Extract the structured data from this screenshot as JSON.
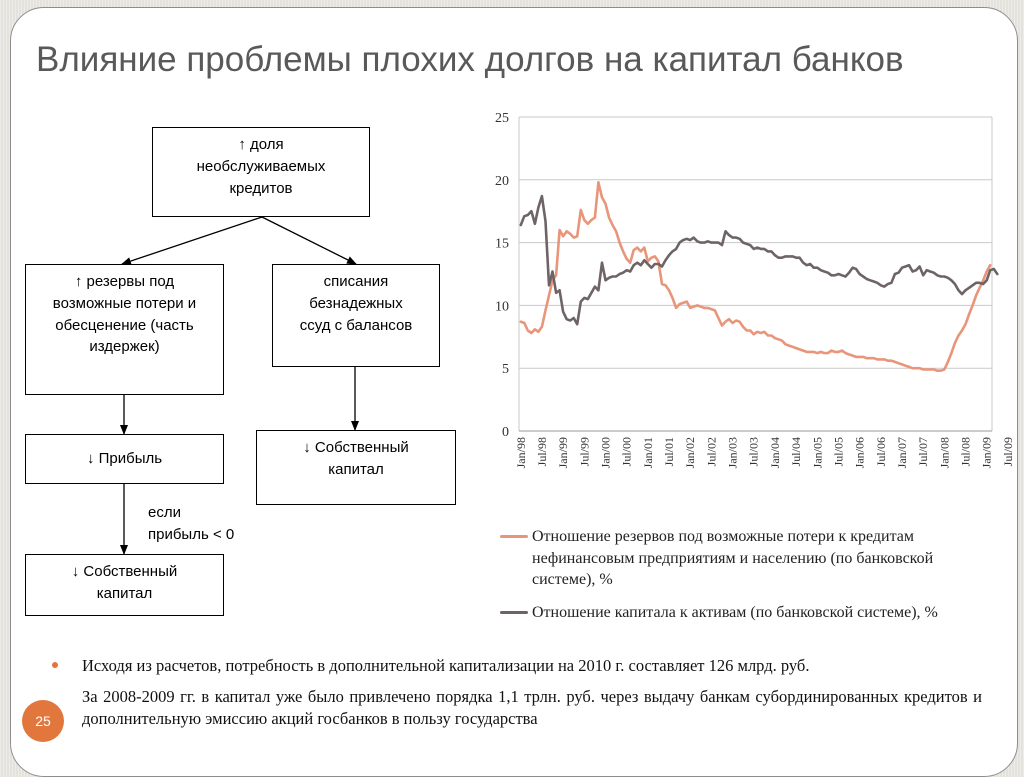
{
  "title": "Влияние проблемы плохих долгов на капитал банков",
  "flow": {
    "top": [
      "↑ доля",
      "необслуживаемых",
      "кредитов"
    ],
    "left_mid": [
      "↑ резервы под",
      "возможные потери и",
      "обесценение (часть",
      "издержек)"
    ],
    "right_mid": [
      "списания",
      "безнадежных",
      "ссуд с балансов"
    ],
    "left_low": "↓ Прибыль",
    "right_low": [
      "↓ Собственный",
      "капитал"
    ],
    "condition": [
      "если",
      "прибыль < 0"
    ],
    "bottom": [
      "↓ Собственный",
      "капитал"
    ]
  },
  "chart_data": {
    "type": "line",
    "yticks": [
      "0",
      "5",
      "10",
      "15",
      "20",
      "25"
    ],
    "ylim": [
      0,
      25
    ],
    "x_start": "Jan/98",
    "x_end": "Dec/09",
    "xticks": [
      "Jan/98",
      "Jul/98",
      "Jan/99",
      "Jul/99",
      "Jan/00",
      "Jul/00",
      "Jan/01",
      "Jul/01",
      "Jan/02",
      "Jul/02",
      "Jan/03",
      "Jul/03",
      "Jan/04",
      "Jul/04",
      "Jan/05",
      "Jul/05",
      "Jan/06",
      "Jul/06",
      "Jan/07",
      "Jul/07",
      "Jan/08",
      "Jul/08",
      "Jan/09",
      "Jul/09"
    ],
    "grid": true,
    "series": [
      {
        "name": "Отношение резервов под возможные потери к кредитам нефинансовым предприятиям и населению (по банковской системе), %",
        "color": "#e8957a",
        "values": [
          8.7,
          8.6,
          8.0,
          7.8,
          8.1,
          7.9,
          8.3,
          9.6,
          10.8,
          12.0,
          12.4,
          16.0,
          15.5,
          15.9,
          15.7,
          15.4,
          15.5,
          17.6,
          16.8,
          16.5,
          16.8,
          17.0,
          19.8,
          18.6,
          18.1,
          17.0,
          16.4,
          15.9,
          15.0,
          14.3,
          13.7,
          13.4,
          14.4,
          14.6,
          14.3,
          14.6,
          13.5,
          13.8,
          13.9,
          13.5,
          11.7,
          11.6,
          11.2,
          10.6,
          9.8,
          10.1,
          10.2,
          10.3,
          9.8,
          9.9,
          10.0,
          9.9,
          9.8,
          9.8,
          9.7,
          9.6,
          9.0,
          8.4,
          8.7,
          8.9,
          8.6,
          8.8,
          8.7,
          8.3,
          8.0,
          8.0,
          7.7,
          7.9,
          7.8,
          7.9,
          7.6,
          7.6,
          7.4,
          7.3,
          7.2,
          6.9,
          6.8,
          6.7,
          6.6,
          6.5,
          6.4,
          6.3,
          6.3,
          6.3,
          6.2,
          6.3,
          6.2,
          6.2,
          6.4,
          6.3,
          6.3,
          6.4,
          6.2,
          6.1,
          6.0,
          5.9,
          5.9,
          5.9,
          5.8,
          5.8,
          5.8,
          5.7,
          5.7,
          5.7,
          5.6,
          5.6,
          5.5,
          5.4,
          5.3,
          5.2,
          5.1,
          5.0,
          5.0,
          5.0,
          4.9,
          4.9,
          4.9,
          4.9,
          4.8,
          4.8,
          4.9,
          5.5,
          6.2,
          7.0,
          7.6,
          8.0,
          8.5,
          9.3,
          10.0,
          10.8,
          11.4,
          12.0,
          12.7,
          13.2
        ]
      },
      {
        "name": "Отношение капитала к активам (по банковской системе), %",
        "color": "#6e6466",
        "values": [
          16.4,
          17.1,
          17.2,
          17.5,
          16.5,
          17.8,
          18.7,
          16.7,
          11.6,
          12.7,
          11.0,
          11.2,
          9.5,
          8.9,
          8.8,
          9.0,
          8.5,
          10.3,
          10.6,
          10.5,
          11.0,
          11.5,
          11.2,
          13.4,
          12.0,
          12.2,
          12.3,
          12.3,
          12.5,
          12.6,
          12.8,
          12.7,
          13.2,
          13.4,
          13.2,
          13.6,
          13.3,
          13.0,
          13.3,
          13.3,
          13.1,
          13.6,
          14.0,
          14.3,
          14.5,
          15.0,
          15.2,
          15.3,
          15.2,
          15.4,
          15.1,
          15.0,
          15.0,
          15.1,
          15.0,
          15.0,
          15.0,
          14.8,
          15.9,
          15.6,
          15.4,
          15.4,
          15.3,
          15.0,
          14.9,
          14.8,
          14.5,
          14.6,
          14.5,
          14.5,
          14.3,
          14.3,
          14.0,
          13.8,
          13.8,
          13.9,
          13.9,
          13.9,
          13.8,
          13.8,
          13.4,
          13.2,
          13.3,
          13.0,
          13.0,
          12.8,
          12.7,
          12.6,
          12.4,
          12.4,
          12.5,
          12.4,
          12.3,
          12.6,
          13.0,
          12.9,
          12.5,
          12.3,
          12.1,
          12.0,
          11.9,
          11.8,
          11.6,
          11.5,
          11.7,
          11.8,
          12.5,
          12.6,
          13.0,
          13.1,
          13.2,
          12.7,
          12.8,
          13.1,
          12.4,
          12.8,
          12.7,
          12.6,
          12.4,
          12.3,
          12.3,
          12.2,
          12.0,
          11.7,
          11.2,
          10.9,
          11.2,
          11.4,
          11.6,
          11.8,
          11.8,
          11.7,
          12.0,
          12.8,
          12.9,
          12.5
        ]
      }
    ]
  },
  "legend": [
    "Отношение резервов под возможные потери к кредитам нефинансовым предприятиям и населению (по банковской системе), %",
    "Отношение капитала к активам (по банковской системе), %"
  ],
  "bullets": [
    "Исходя из расчетов, потребность в дополнительной капитализации на 2010 г. составляет 126 млрд. руб.",
    "За 2008-2009 гг. в капитал уже было привлечено порядка 1,1 трлн. руб. через выдачу банкам субординированных кредитов и дополнительную эмиссию акций госбанков в пользу государства"
  ],
  "page_number": "25"
}
